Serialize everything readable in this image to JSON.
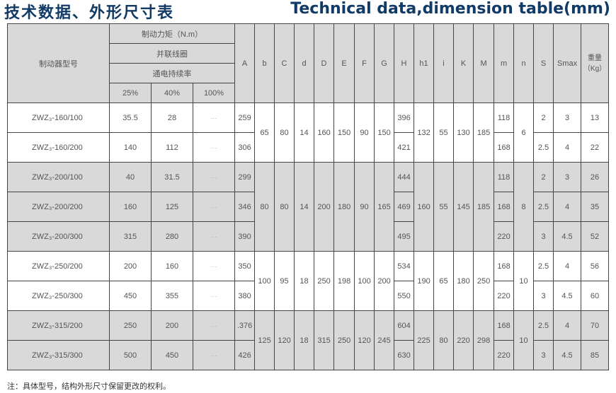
{
  "title_cn": "技术数据、外形尺寸表",
  "title_en": "Technical data,dimension table(mm)",
  "header": {
    "model": "制动器型号",
    "torque": "制动力矩（N.m）",
    "coil": "并联线圈",
    "duty": "通电持续率",
    "duty_levels": [
      "25%",
      "40%",
      "100%"
    ],
    "dims": [
      "A",
      "b",
      "C",
      "d",
      "D",
      "E",
      "F",
      "G",
      "H",
      "h1",
      "i",
      "K",
      "M",
      "m",
      "n",
      "S",
      "Smax"
    ],
    "weight": "重量（Kg）"
  },
  "groups": [
    {
      "shade": "white",
      "b": "65",
      "C": "80",
      "d": "14",
      "D": "160",
      "E": "150",
      "F": "90",
      "G": "150",
      "h1": "132",
      "i": "55",
      "K": "130",
      "M": "185",
      "n": "6",
      "rows": [
        {
          "model": "ZWZ₃-160/100",
          "t25": "35.5",
          "t40": "28",
          "t100": "···",
          "A": "259",
          "H": "396",
          "m": "118",
          "S": "2",
          "Smax": "3",
          "weight": "13"
        },
        {
          "model": "ZWZ₃-160/200",
          "t25": "140",
          "t40": "112",
          "t100": "···",
          "A": "306",
          "H": "421",
          "m": "168",
          "S": "2.5",
          "Smax": "4",
          "weight": "22"
        }
      ]
    },
    {
      "shade": "gray",
      "b": "80",
      "C": "80",
      "d": "14",
      "D": "200",
      "E": "180",
      "F": "90",
      "G": "165",
      "h1": "160",
      "i": "55",
      "K": "145",
      "M": "185",
      "n": "8",
      "rows": [
        {
          "model": "ZWZ₃-200/100",
          "t25": "40",
          "t40": "31.5",
          "t100": "···",
          "A": "299",
          "H": "444",
          "m": "118",
          "S": "2",
          "Smax": "3",
          "weight": "26"
        },
        {
          "model": "ZWZ₃-200/200",
          "t25": "160",
          "t40": "125",
          "t100": "···",
          "A": "346",
          "H": "469",
          "m": "168",
          "S": "2.5",
          "Smax": "4",
          "weight": "35"
        },
        {
          "model": "ZWZ₃-200/300",
          "t25": "315",
          "t40": "280",
          "t100": "···",
          "A": "390",
          "H": "495",
          "m": "220",
          "S": "3",
          "Smax": "4.5",
          "weight": "52"
        }
      ]
    },
    {
      "shade": "white",
      "b": "100",
      "C": "95",
      "d": "18",
      "D": "250",
      "E": "198",
      "F": "100",
      "G": "200",
      "h1": "190",
      "i": "65",
      "K": "180",
      "M": "250",
      "n": "10",
      "rows": [
        {
          "model": "ZWZ₃-250/200",
          "t25": "200",
          "t40": "160",
          "t100": "···",
          "A": "350",
          "H": "534",
          "m": "168",
          "S": "2.5",
          "Smax": "4",
          "weight": "56"
        },
        {
          "model": "ZWZ₃-250/300",
          "t25": "450",
          "t40": "355",
          "t100": "···",
          "A": "380",
          "H": "550",
          "m": "220",
          "S": "3",
          "Smax": "4.5",
          "weight": "60"
        }
      ]
    },
    {
      "shade": "gray",
      "b": "125",
      "C": "120",
      "d": "18",
      "D": "315",
      "E": "250",
      "F": "120",
      "G": "245",
      "h1": "225",
      "i": "80",
      "K": "220",
      "M": "298",
      "n": "10",
      "rows": [
        {
          "model": "ZWZ₃-315/200",
          "t25": "250",
          "t40": "200",
          "t100": "···",
          "A": ".376",
          "H": "604",
          "m": "168",
          "S": "2.5",
          "Smax": "4",
          "weight": "70"
        },
        {
          "model": "ZWZ₃-315/300",
          "t25": "500",
          "t40": "450",
          "t100": "···",
          "A": "426",
          "H": "630",
          "m": "220",
          "S": "3",
          "Smax": "4.5",
          "weight": "85"
        }
      ]
    }
  ],
  "note": "注：具体型号，结构外形尺寸保留更改的权利。"
}
